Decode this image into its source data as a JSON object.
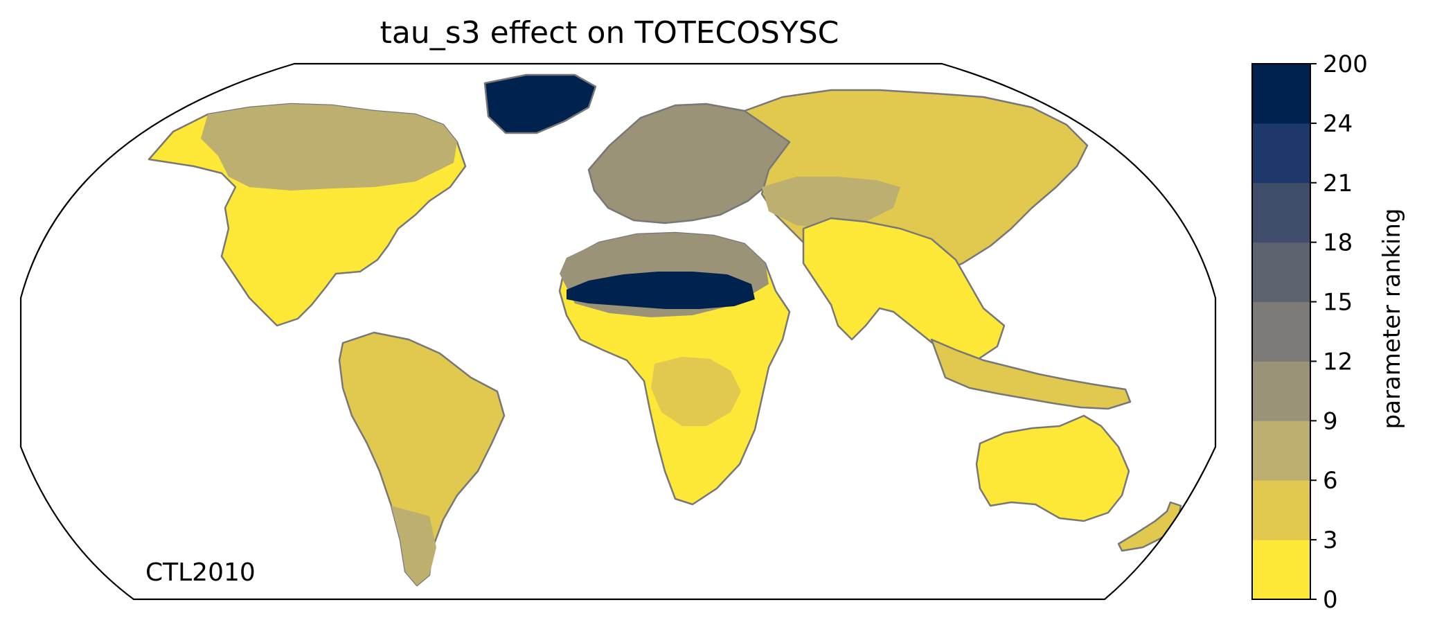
{
  "chart_data": {
    "type": "heatmap",
    "title": "tau_s3 effect on TOTECOSYSC",
    "map_projection": "Robinson",
    "annotation": "CTL2010",
    "colorbar": {
      "label": "parameter ranking",
      "ticks": [
        "0",
        "3",
        "6",
        "9",
        "12",
        "15",
        "18",
        "21",
        "24",
        "200"
      ],
      "colors": [
        "#fde838",
        "#e1c94f",
        "#bcaf6f",
        "#9a9378",
        "#7c7b78",
        "#5e6370",
        "#404d6b",
        "#1f386c",
        "#00224e"
      ]
    },
    "coastline_color": "#777777",
    "regions": [
      {
        "name": "North America",
        "ranking_bin": "0-3",
        "color": "#fde838"
      },
      {
        "name": "Canada",
        "ranking_bin": "3-12",
        "color": "#bcaf6f"
      },
      {
        "name": "Greenland",
        "ranking_bin": "24-200",
        "color": "#00224e"
      },
      {
        "name": "South America",
        "ranking_bin": "3-6",
        "color": "#e1c94f"
      },
      {
        "name": "Patagonia",
        "ranking_bin": "6-9",
        "color": "#bcaf6f"
      },
      {
        "name": "Europe",
        "ranking_bin": "6-12",
        "color": "#9a9378"
      },
      {
        "name": "Northern Asia",
        "ranking_bin": "3-6",
        "color": "#e1c94f"
      },
      {
        "name": "Central Asia",
        "ranking_bin": "6-9",
        "color": "#bcaf6f"
      },
      {
        "name": "Sahara",
        "ranking_bin": "24-200",
        "color": "#00224e"
      },
      {
        "name": "Sahel",
        "ranking_bin": "9-15",
        "color": "#9a9378"
      },
      {
        "name": "Africa",
        "ranking_bin": "0-3",
        "color": "#fde838"
      },
      {
        "name": "Central Africa",
        "ranking_bin": "3-6",
        "color": "#e1c94f"
      },
      {
        "name": "South Asia",
        "ranking_bin": "0-3",
        "color": "#fde838"
      },
      {
        "name": "Southeast Asia",
        "ranking_bin": "3-6",
        "color": "#e1c94f"
      },
      {
        "name": "Australia",
        "ranking_bin": "0-3",
        "color": "#fde838"
      },
      {
        "name": "New Zealand",
        "ranking_bin": "3-6",
        "color": "#e1c94f"
      }
    ]
  }
}
